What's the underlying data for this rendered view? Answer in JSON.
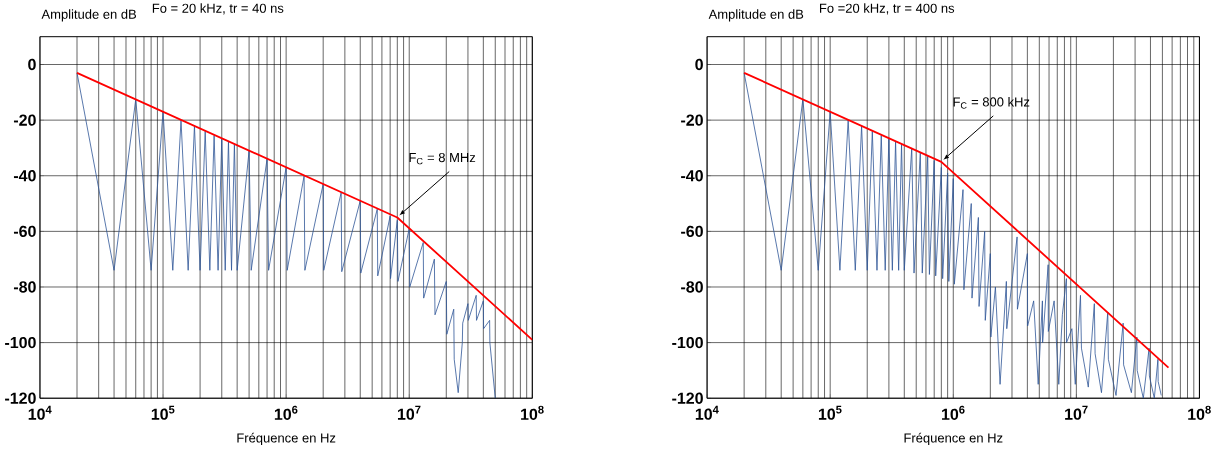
{
  "chart_data": [
    {
      "type": "line",
      "title": "Fo = 20 kHz, tr = 40 ns",
      "ylabel": "Amplitude en dB",
      "xlabel": "Fréquence en Hz",
      "log": "x",
      "grid": true,
      "xlim": [
        10000,
        100000000
      ],
      "ylim": [
        -120,
        10
      ],
      "xticks": [
        {
          "value": 10000,
          "label": "10$^{4}$"
        },
        {
          "value": 100000,
          "label": "10$^{5}$"
        },
        {
          "value": 1000000,
          "label": "10$^{6}$"
        },
        {
          "value": 10000000,
          "label": "10$^{7}$"
        },
        {
          "value": 100000000,
          "label": "10$^{8}$"
        }
      ],
      "yticks": [
        0,
        -20,
        -40,
        -60,
        -80,
        -100,
        -120
      ],
      "annotations": [
        {
          "text": "F$_{C}$ =  8 MHz",
          "x": 8000000,
          "y": -55
        }
      ],
      "series": [
        {
          "color": "#2f5597",
          "x": [
            20000,
            40000,
            60000,
            80000,
            100000,
            120000,
            140000,
            160000,
            180000,
            200000,
            220000,
            240000,
            260000,
            280000,
            300000,
            320000,
            340000,
            360000,
            380000,
            400000,
            500000,
            520000,
            700000,
            720000,
            1000000,
            1020000,
            1400000,
            1420000,
            2000000,
            2020000,
            2800000,
            2830000,
            4000000,
            4040000,
            5500000,
            5550000,
            7000000,
            7050000,
            8000000,
            8100000,
            10000000,
            10100000,
            13000000,
            13100000,
            16000000,
            16200000,
            20000000,
            20200000,
            23000000,
            23200000,
            25000000,
            27000000,
            27200000,
            30000000,
            30200000,
            35000000,
            35200000,
            40000000,
            40200000,
            45000000,
            45200000,
            50000000
          ],
          "values": [
            -3,
            -74,
            -12.5,
            -74,
            -17,
            -74,
            -20,
            -74,
            -22,
            -74,
            -24,
            -74,
            -25.5,
            -74,
            -26.5,
            -74,
            -27.5,
            -74,
            -28.5,
            -74,
            -31,
            -74,
            -34,
            -74,
            -37,
            -74,
            -40,
            -74,
            -43,
            -74,
            -46,
            -74.5,
            -49,
            -75,
            -52,
            -76,
            -54.5,
            -77,
            -56,
            -78,
            -59,
            -80,
            -64,
            -84,
            -70,
            -90,
            -78,
            -97,
            -88,
            -106,
            -118,
            -100,
            -93,
            -86,
            -92,
            -83,
            -92,
            -85,
            -95,
            -92,
            -100,
            -120
          ]
        },
        {
          "color": "#ff0000",
          "x": [
            20000,
            8000000,
            100000000
          ],
          "values": [
            -3,
            -55,
            -99
          ]
        }
      ]
    },
    {
      "type": "line",
      "title": "Fo =20 kHz, tr = 400 ns",
      "ylabel": "Amplitude en dB",
      "xlabel": "Fréquence en Hz",
      "log": "x",
      "grid": true,
      "xlim": [
        10000,
        100000000
      ],
      "ylim": [
        -120,
        10
      ],
      "xticks": [
        {
          "value": 10000,
          "label": "10$^{4}$"
        },
        {
          "value": 100000,
          "label": "10$^{5}$"
        },
        {
          "value": 1000000,
          "label": "10$^{6}$"
        },
        {
          "value": 10000000,
          "label": "10$^{7}$"
        },
        {
          "value": 100000000,
          "label": "10$^{8}$"
        }
      ],
      "yticks": [
        0,
        -20,
        -40,
        -60,
        -80,
        -100,
        -120
      ],
      "annotations": [
        {
          "text": "F$_{C}$ =  800 kHz",
          "x": 800000,
          "y": -35
        }
      ],
      "series": [
        {
          "color": "#2f5597",
          "x": [
            20000,
            40000,
            60000,
            80000,
            100000,
            120000,
            140000,
            160000,
            180000,
            200000,
            220000,
            240000,
            260000,
            280000,
            300000,
            320000,
            340000,
            360000,
            380000,
            400000,
            460000,
            480000,
            540000,
            560000,
            620000,
            640000,
            700000,
            720000,
            800000,
            820000,
            900000,
            920000,
            1000000,
            1020000,
            1200000,
            1220000,
            1400000,
            1420000,
            1600000,
            1620000,
            1800000,
            1820000,
            2000000,
            2020000,
            2200000,
            2400000,
            2700000,
            2720000,
            3300000,
            3320000,
            4000000,
            4020000,
            4500000,
            4900000,
            5300000,
            5320000,
            5900000,
            5920000,
            6600000,
            7200000,
            7700000,
            8300000,
            8320000,
            9200000,
            9800000,
            10800000,
            11000000,
            12500000,
            14000000,
            14200000,
            16000000,
            18000000,
            18200000,
            21000000,
            24000000,
            24200000,
            28000000,
            31000000,
            31200000,
            35000000,
            39000000,
            39200000,
            43000000,
            46000000,
            46200000,
            49000000
          ],
          "values": [
            -3,
            -74,
            -12.5,
            -74,
            -17,
            -74,
            -20,
            -74,
            -22,
            -74,
            -24,
            -74,
            -25.5,
            -74,
            -26.5,
            -74,
            -27.5,
            -74,
            -28.5,
            -74,
            -30,
            -75,
            -31.5,
            -75,
            -33,
            -75.5,
            -34.5,
            -76,
            -37,
            -77,
            -39,
            -78,
            -41,
            -79,
            -45,
            -81,
            -50,
            -84,
            -55,
            -87,
            -60,
            -92,
            -68,
            -98,
            -80,
            -115,
            -78,
            -95,
            -62,
            -88,
            -68,
            -94,
            -85,
            -115,
            -85,
            -100,
            -72,
            -96,
            -85,
            -115,
            -90,
            -77,
            -100,
            -95,
            -115,
            -83,
            -102,
            -116,
            -86,
            -104,
            -118,
            -89,
            -106,
            -119,
            -93,
            -108,
            -118,
            -98,
            -110,
            -120,
            -102,
            -112,
            -120,
            -106,
            -114,
            -119
          ]
        },
        {
          "color": "#ff0000",
          "x": [
            20000,
            800000,
            56000000
          ],
          "values": [
            -3,
            -35,
            -109
          ]
        }
      ]
    }
  ]
}
